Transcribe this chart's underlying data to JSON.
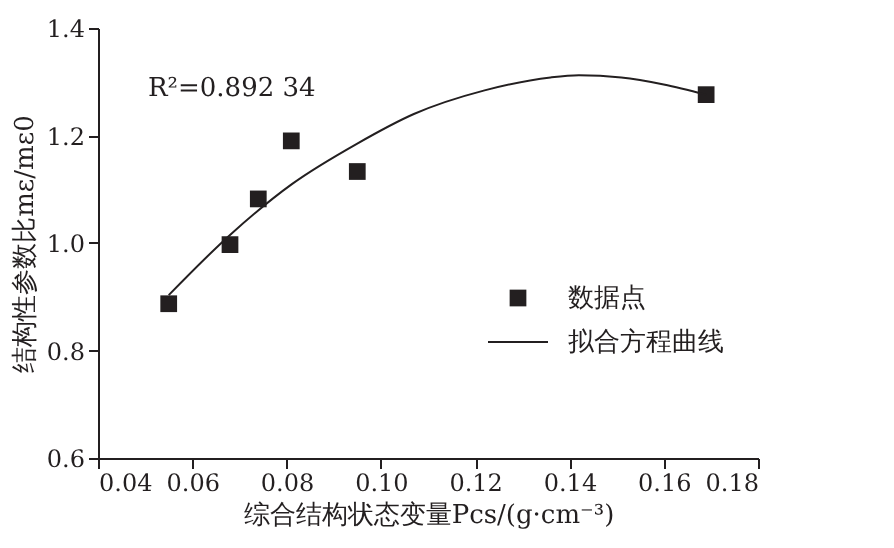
{
  "chart_data": {
    "type": "scatter",
    "xlabel": "综合结构状态变量Pcs/(g·cm⁻³)",
    "ylabel": "结构性参数比mε/mε0",
    "annotations": [
      "R²=0.892 34"
    ],
    "series": [
      {
        "name": "数据点",
        "type": "scatter",
        "color": "#231f20",
        "marker": "square",
        "x": [
          0.055,
          0.068,
          0.074,
          0.081,
          0.095,
          0.169
        ],
        "values": [
          0.887,
          0.997,
          1.082,
          1.19,
          1.133,
          1.276
        ]
      },
      {
        "name": "拟合方程曲线",
        "type": "line",
        "color": "#231f20",
        "marker": "none",
        "line_style": "solid",
        "x": [
          0.055,
          0.068,
          0.0812,
          0.095,
          0.107,
          0.122,
          0.136,
          0.142,
          0.151,
          0.16,
          0.169
        ],
        "values": [
          0.903,
          1.015,
          1.11,
          1.185,
          1.24,
          1.284,
          1.308,
          1.312,
          1.308,
          1.295,
          1.276
        ]
      }
    ],
    "xlim": [
      0.04,
      0.18
    ],
    "xticks": [
      {
        "value": 0.04,
        "label": "0.04"
      },
      {
        "value": 0.06,
        "label": "0.06"
      },
      {
        "value": 0.08,
        "label": "0.08"
      },
      {
        "value": 0.1,
        "label": "0.10"
      },
      {
        "value": 0.12,
        "label": "0.12"
      },
      {
        "value": 0.14,
        "label": "0.14"
      },
      {
        "value": 0.16,
        "label": "0.16"
      },
      {
        "value": 0.18,
        "label": "0.18"
      }
    ],
    "ylim": [
      0.6,
      1.4
    ],
    "yticks": [
      {
        "value": 0.6,
        "label": "0.6"
      },
      {
        "value": 0.8,
        "label": "0.8"
      },
      {
        "value": 1.0,
        "label": "1.0"
      },
      {
        "value": 1.2,
        "label": "1.2"
      },
      {
        "value": 1.4,
        "label": "1.4"
      }
    ],
    "grid": false,
    "legend": "bottom right"
  }
}
